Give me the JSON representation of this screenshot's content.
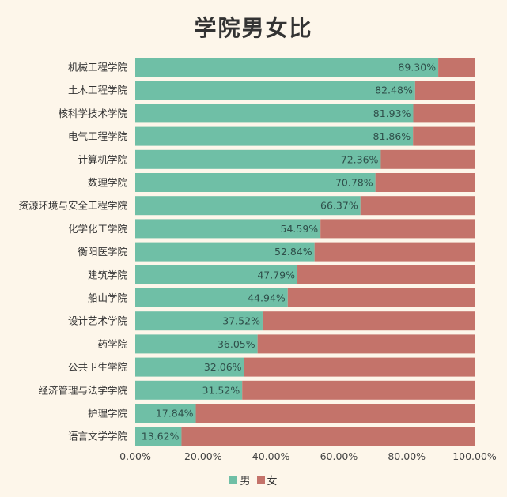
{
  "chart_data": {
    "type": "bar",
    "orientation": "horizontal",
    "stacked": true,
    "title": "学院男女比",
    "categories": [
      "机械工程学院",
      "土木工程学院",
      "核科学技术学院",
      "电气工程学院",
      "计算机学院",
      "数理学院",
      "资源环境与安全工程学院",
      "化学化工学院",
      "衡阳医学院",
      "建筑学院",
      "船山学院",
      "设计艺术学院",
      "药学院",
      "公共卫生学院",
      "经济管理与法学学院",
      "护理学院",
      "语言文学学院"
    ],
    "series": [
      {
        "name": "男",
        "color": "#6fbfa6",
        "values": [
          89.3,
          82.48,
          81.93,
          81.86,
          72.36,
          70.78,
          66.37,
          54.59,
          52.84,
          47.79,
          44.94,
          37.52,
          36.05,
          32.06,
          31.52,
          17.84,
          13.62
        ]
      },
      {
        "name": "女",
        "color": "#c4736a",
        "values": [
          10.7,
          17.52,
          18.07,
          18.14,
          27.64,
          29.22,
          33.63,
          45.41,
          47.16,
          52.21,
          55.06,
          62.48,
          63.95,
          67.94,
          68.48,
          82.16,
          86.38
        ]
      }
    ],
    "data_labels": [
      "89.30%",
      "82.48%",
      "81.93%",
      "81.86%",
      "72.36%",
      "70.78%",
      "66.37%",
      "54.59%",
      "52.84%",
      "47.79%",
      "44.94%",
      "37.52%",
      "36.05%",
      "32.06%",
      "31.52%",
      "17.84%",
      "13.62%"
    ],
    "x_ticks": [
      "0.00%",
      "20.00%",
      "40.00%",
      "60.00%",
      "80.00%",
      "100.00%"
    ],
    "xlim": [
      0,
      100
    ],
    "grid": false,
    "legend": "bottom"
  }
}
